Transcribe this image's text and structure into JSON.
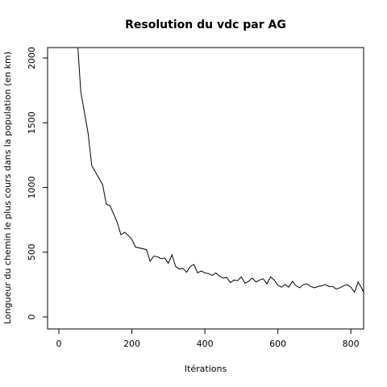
{
  "chart_data": {
    "type": "line",
    "title": "Resolution du vdc par AG",
    "x_label": "Itérations",
    "y_label": "Longueur du chemin le plus cours dans la population (en km)",
    "x": [
      40,
      60,
      80,
      90,
      120,
      130,
      140,
      160,
      170,
      180,
      190,
      200,
      210,
      240,
      250,
      260,
      270,
      280,
      290,
      300,
      310,
      320,
      330,
      340,
      350,
      360,
      370,
      380,
      390,
      400,
      410,
      420,
      430,
      440,
      450,
      460,
      470,
      480,
      490,
      500,
      510,
      520,
      530,
      540,
      550,
      560,
      570,
      580,
      590,
      600,
      610,
      620,
      630,
      640,
      650,
      660,
      670,
      680,
      690,
      700,
      710,
      720,
      730,
      740,
      750,
      760,
      770,
      780,
      790,
      800,
      810,
      820,
      830,
      835
    ],
    "series": [
      {
        "name": "AG",
        "color": "#000000",
        "values": [
          2600,
          1740,
          1420,
          1170,
          1020,
          870,
          860,
          730,
          635,
          654,
          630,
          600,
          540,
          520,
          430,
          470,
          465,
          450,
          455,
          415,
          480,
          390,
          370,
          375,
          345,
          390,
          405,
          340,
          355,
          340,
          335,
          320,
          340,
          315,
          300,
          305,
          265,
          285,
          280,
          310,
          260,
          275,
          300,
          270,
          285,
          295,
          255,
          310,
          285,
          245,
          230,
          250,
          230,
          275,
          240,
          225,
          250,
          255,
          235,
          225,
          235,
          240,
          250,
          235,
          235,
          215,
          225,
          240,
          250,
          230,
          190,
          270,
          220,
          190
        ]
      }
    ],
    "xlim": [
      -31,
      835
    ],
    "ylim": [
      -93,
      2081
    ],
    "xticks": [
      0,
      200,
      400,
      600,
      800
    ],
    "yticks": [
      0,
      500,
      1000,
      1500,
      2000
    ]
  }
}
